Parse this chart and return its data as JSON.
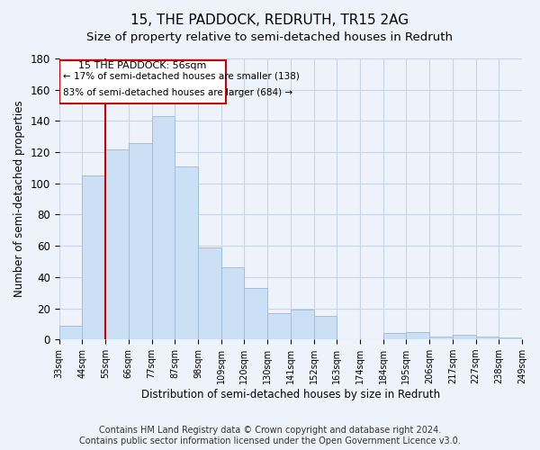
{
  "title": "15, THE PADDOCK, REDRUTH, TR15 2AG",
  "subtitle": "Size of property relative to semi-detached houses in Redruth",
  "xlabel": "Distribution of semi-detached houses by size in Redruth",
  "ylabel": "Number of semi-detached properties",
  "categories": [
    "33sqm",
    "44sqm",
    "55sqm",
    "66sqm",
    "77sqm",
    "87sqm",
    "98sqm",
    "109sqm",
    "120sqm",
    "130sqm",
    "141sqm",
    "152sqm",
    "163sqm",
    "174sqm",
    "184sqm",
    "195sqm",
    "206sqm",
    "217sqm",
    "227sqm",
    "238sqm",
    "249sqm"
  ],
  "values": [
    9,
    105,
    122,
    126,
    143,
    111,
    59,
    46,
    33,
    17,
    19,
    15,
    0,
    0,
    4,
    5,
    2,
    3,
    2,
    1
  ],
  "bar_color": "#cce0f5",
  "bar_edge_color": "#a0c0e0",
  "property_line_x": 2,
  "property_label": "15 THE PADDOCK: 56sqm",
  "smaller_pct": "17%",
  "smaller_n": 138,
  "larger_pct": "83%",
  "larger_n": 684,
  "annotation_box_color": "#cc0000",
  "ylim": [
    0,
    180
  ],
  "yticks": [
    0,
    20,
    40,
    60,
    80,
    100,
    120,
    140,
    160,
    180
  ],
  "footer": "Contains HM Land Registry data © Crown copyright and database right 2024.\nContains public sector information licensed under the Open Government Licence v3.0.",
  "bg_color": "#eef2fa",
  "grid_color": "#c8d4ec",
  "title_fontsize": 11,
  "subtitle_fontsize": 9.5
}
